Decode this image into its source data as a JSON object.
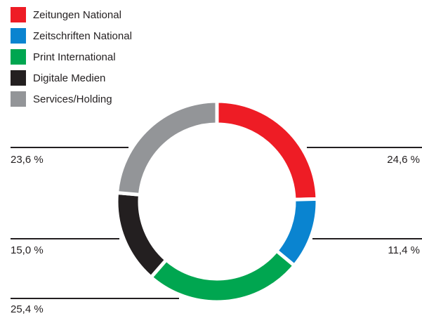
{
  "chart_data": {
    "type": "donut",
    "categories": [
      "Zeitungen National",
      "Zeitschriften National",
      "Print International",
      "Digitale Medien",
      "Services/Holding"
    ],
    "values": [
      24.6,
      11.4,
      25.4,
      15.0,
      23.6
    ],
    "value_labels": [
      "24,6 %",
      "11,4 %",
      "25,4 %",
      "15,0 %",
      "23,6 %"
    ],
    "colors": [
      "#ee1c25",
      "#0a84d0",
      "#00a650",
      "#231f20",
      "#939598"
    ]
  }
}
